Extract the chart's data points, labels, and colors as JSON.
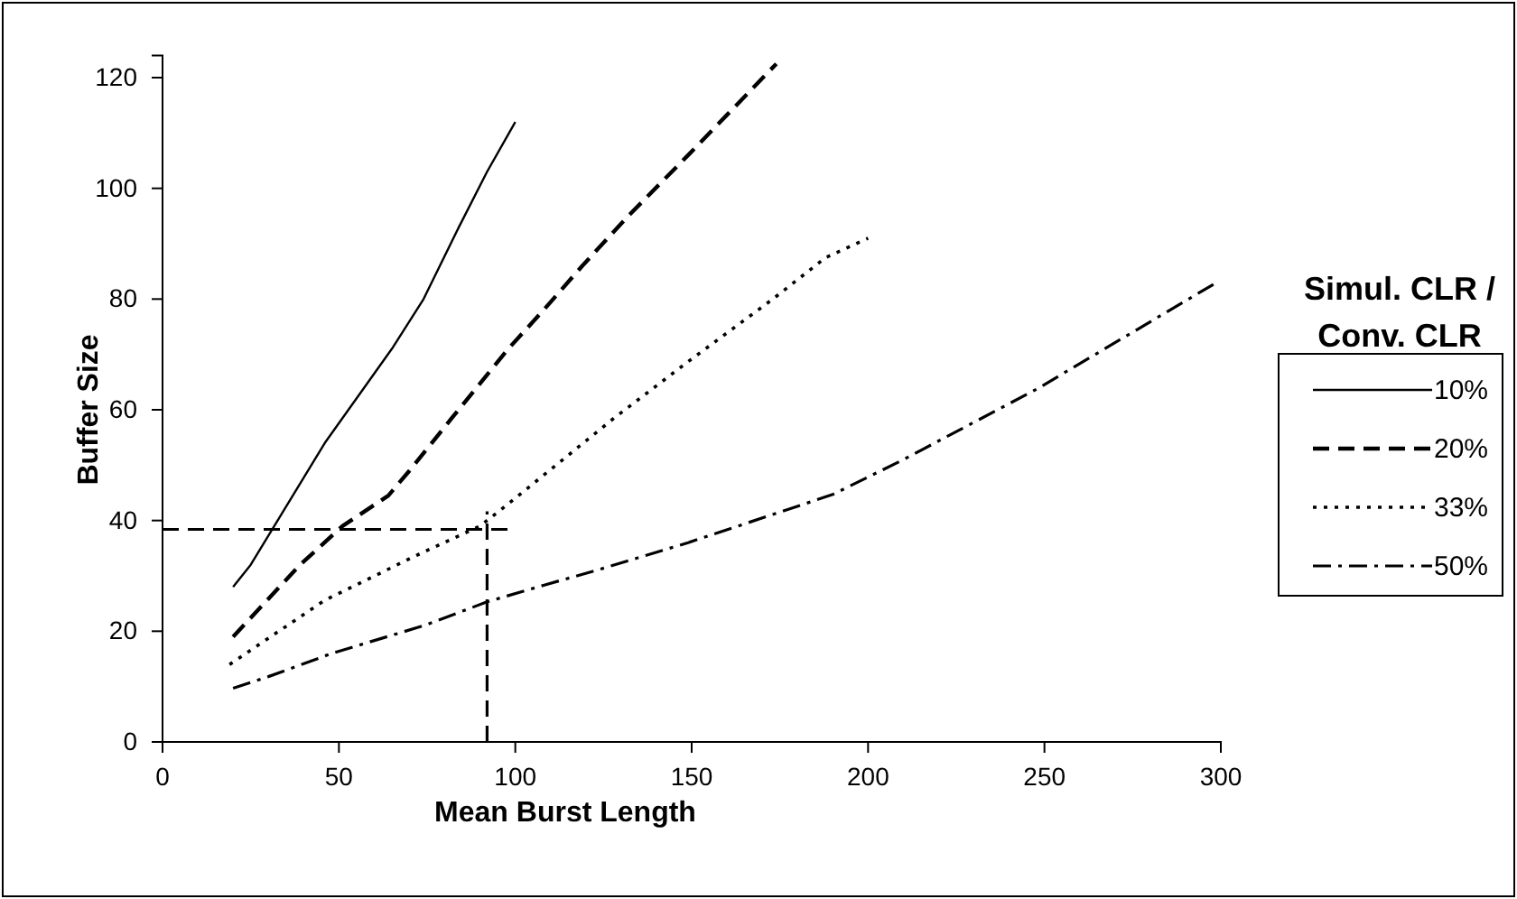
{
  "chart_data": {
    "type": "line",
    "xlabel": "Mean Burst Length",
    "ylabel": "Buffer Size",
    "legend_title": "Simul. CLR / Conv. CLR",
    "legend": "right",
    "grid": false,
    "xlim": [
      0,
      300
    ],
    "xticks": [
      0,
      50,
      100,
      150,
      200,
      250,
      300
    ],
    "ylim": [
      0,
      124
    ],
    "yticks": [
      0,
      20,
      40,
      60,
      80,
      100,
      120
    ],
    "series": [
      {
        "name": "10%",
        "color": "#000000",
        "line_style": "solid",
        "x": [
          20,
          25,
          46,
          65,
          74,
          84,
          92,
          100
        ],
        "values": [
          28,
          32,
          54,
          71,
          80,
          93,
          103,
          112
        ]
      },
      {
        "name": "20%",
        "color": "#000000",
        "line_style": "dashed",
        "x": [
          20,
          39,
          51,
          64,
          70,
          82,
          98,
          108,
          119,
          132,
          149,
          174
        ],
        "values": [
          19,
          32,
          39,
          44.5,
          49,
          58.5,
          71,
          78,
          86,
          95,
          106,
          122.5
        ]
      },
      {
        "name": "33%",
        "color": "#000000",
        "line_style": "dotted",
        "x": [
          19,
          46,
          72,
          90,
          98,
          128,
          149,
          173,
          188,
          200
        ],
        "values": [
          14,
          25.6,
          33.7,
          39,
          43,
          58.5,
          68.7,
          80,
          87.5,
          91
        ]
      },
      {
        "name": "50%",
        "color": "#000000",
        "line_style": "dashdot",
        "x": [
          20,
          30,
          48,
          74,
          92,
          108,
          123,
          149,
          190,
          210,
          248,
          298
        ],
        "values": [
          9.7,
          11.8,
          16,
          21,
          25.3,
          28.3,
          31,
          36,
          44.7,
          51,
          63.8,
          82.7
        ]
      }
    ],
    "ref_lines": [
      {
        "axis": "y",
        "value": 38.4,
        "color": "#000000",
        "line_style": "dashed"
      },
      {
        "axis": "x",
        "value": 92,
        "color": "#000000",
        "line_style": "dashed"
      }
    ]
  }
}
